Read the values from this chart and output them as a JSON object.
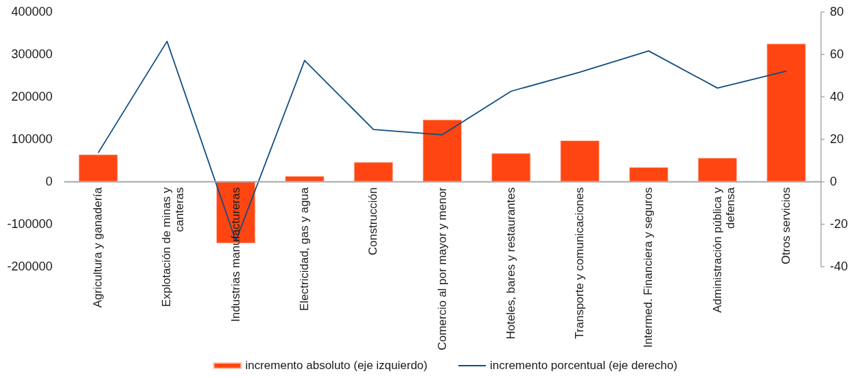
{
  "chart_data": {
    "type": "bar",
    "categories": [
      "Agricultura y ganadería",
      "Explotación de minas y canteras",
      "Industrias manufactureras",
      "Electricidad, gas y agua",
      "Construcción",
      "Comercio al por mayor y menor",
      "Hoteles, bares y restaurantes",
      "Transporte y comunicaciones",
      "Intermed. Financiera y seguros",
      "Administración pública y defensa",
      "Otros servicios"
    ],
    "series": [
      {
        "name": "incremento absoluto (eje izquierdo)",
        "color": "#ff4612",
        "values": [
          63000,
          null,
          -145000,
          12000,
          45000,
          145000,
          66000,
          96000,
          33000,
          55000,
          324000
        ]
      },
      {
        "name": "incremento porcentual (eje derecho)",
        "type": "line",
        "axis": "y2",
        "color": "#0f4c81",
        "values": [
          13.5,
          66,
          -28,
          57,
          24.5,
          22,
          42.5,
          51.5,
          61.5,
          44,
          52
        ]
      }
    ],
    "ylim": [
      -200000,
      400000
    ],
    "yticks": [
      -200000,
      -100000,
      0,
      100000,
      200000,
      300000,
      400000
    ],
    "y2lim": [
      -40,
      80
    ],
    "y2ticks": [
      -40,
      -20,
      0,
      20,
      40,
      60,
      80
    ],
    "legend": "bottom",
    "grid": false
  }
}
